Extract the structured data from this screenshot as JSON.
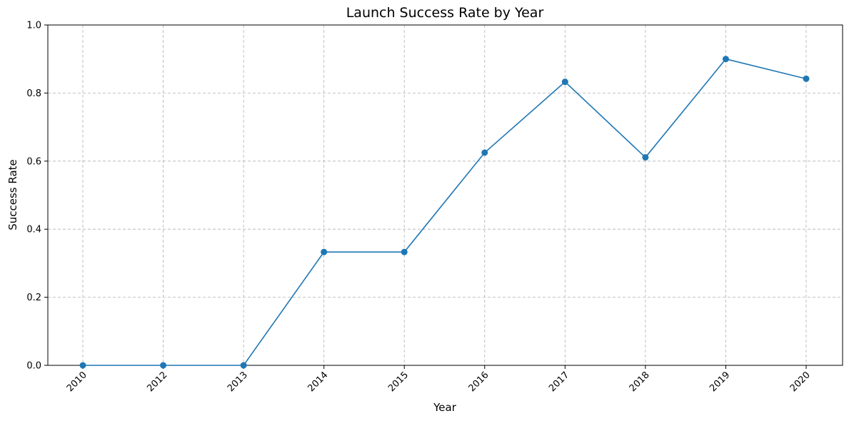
{
  "chart_data": {
    "type": "line",
    "title": "Launch Success Rate by Year",
    "xlabel": "Year",
    "ylabel": "Success Rate",
    "categories": [
      "2010",
      "2012",
      "2013",
      "2014",
      "2015",
      "2016",
      "2017",
      "2018",
      "2019",
      "2020"
    ],
    "series": [
      {
        "values": [
          0.0,
          0.0,
          0.0,
          0.333,
          0.333,
          0.625,
          0.833,
          0.611,
          0.9,
          0.842
        ],
        "color": "#1f77b4",
        "marker": "circle"
      }
    ],
    "ylim": [
      0,
      1.0
    ],
    "yticks": [
      "0.0",
      "0.2",
      "0.4",
      "0.6",
      "0.8",
      "1.0"
    ],
    "grid": true,
    "legend": false
  }
}
